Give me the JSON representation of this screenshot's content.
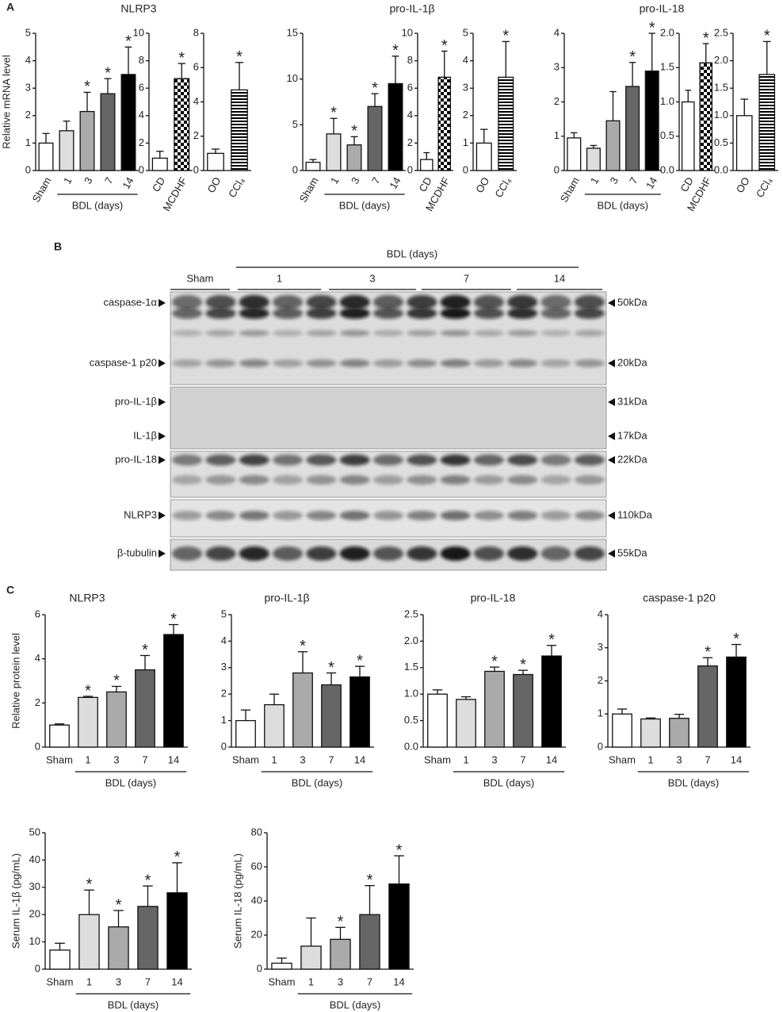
{
  "panels": [
    "A",
    "B",
    "C"
  ],
  "blot": {
    "group_label": "BDL (days)",
    "lanes": [
      "Sham",
      "1",
      "3",
      "7",
      "14"
    ],
    "rows": [
      {
        "protein": "caspase-1α",
        "size": "50kDa"
      },
      {
        "protein": "caspase-1 p20",
        "size": "20kDa"
      },
      {
        "protein": "pro-IL-1β",
        "size": "31kDa"
      },
      {
        "protein": "IL-1β",
        "size": "17kDa"
      },
      {
        "protein": "pro-IL-18",
        "size": "22kDa"
      },
      {
        "protein": "NLRP3",
        "size": "110kDa"
      },
      {
        "protein": "β-tubulin",
        "size": "55kDa"
      }
    ]
  },
  "chart_data": [
    {
      "type": "bar",
      "title": "NLRP3",
      "ylabel": "Relative mRNA level",
      "group_label": "BDL (days)",
      "categories": [
        "Sham",
        "1",
        "3",
        "7",
        "14"
      ],
      "values": [
        1.0,
        1.45,
        2.15,
        2.8,
        3.5
      ],
      "errors": [
        0.35,
        0.35,
        0.7,
        0.55,
        1.0
      ],
      "significance": [
        null,
        null,
        "*",
        "*",
        "*"
      ],
      "colors": [
        "#ffffff",
        "#dddddd",
        "#aaaaaa",
        "#666666",
        "#000000"
      ],
      "ylim": [
        0,
        5
      ],
      "yticks": [
        0,
        1,
        2,
        3,
        4,
        5
      ]
    },
    {
      "type": "bar",
      "categories": [
        "CD",
        "MCDHF"
      ],
      "values": [
        0.9,
        6.7
      ],
      "errors": [
        0.5,
        1.1
      ],
      "significance": [
        null,
        "*"
      ],
      "colors": [
        "#ffffff",
        "#ffffff"
      ],
      "patterns": [
        null,
        "checker"
      ],
      "ylim": [
        0,
        10
      ],
      "yticks": [
        0,
        2,
        4,
        6,
        8,
        10
      ]
    },
    {
      "type": "bar",
      "categories": [
        "OO",
        "CCl₄"
      ],
      "values": [
        1.0,
        4.7
      ],
      "errors": [
        0.25,
        1.6
      ],
      "significance": [
        null,
        "*"
      ],
      "colors": [
        "#ffffff",
        "#ffffff"
      ],
      "patterns": [
        null,
        "stripes"
      ],
      "ylim": [
        0,
        8
      ],
      "yticks": [
        0,
        2,
        4,
        6,
        8
      ]
    },
    {
      "type": "bar",
      "title": "pro-IL-1β",
      "group_label": "BDL (days)",
      "categories": [
        "Sham",
        "1",
        "3",
        "7",
        "14"
      ],
      "values": [
        0.9,
        4.0,
        2.8,
        7.0,
        9.5
      ],
      "errors": [
        0.3,
        1.7,
        0.9,
        1.4,
        3.0
      ],
      "significance": [
        null,
        "*",
        "*",
        "*",
        "*"
      ],
      "colors": [
        "#ffffff",
        "#dddddd",
        "#aaaaaa",
        "#666666",
        "#000000"
      ],
      "ylim": [
        0,
        15
      ],
      "yticks": [
        0,
        5,
        10,
        15
      ]
    },
    {
      "type": "bar",
      "categories": [
        "CD",
        "MCDHF"
      ],
      "values": [
        0.8,
        6.8
      ],
      "errors": [
        0.5,
        1.9
      ],
      "significance": [
        null,
        "*"
      ],
      "colors": [
        "#ffffff",
        "#ffffff"
      ],
      "patterns": [
        null,
        "checker"
      ],
      "ylim": [
        0,
        10
      ],
      "yticks": [
        0,
        2,
        4,
        6,
        8,
        10
      ]
    },
    {
      "type": "bar",
      "categories": [
        "OO",
        "CCl₄"
      ],
      "values": [
        1.0,
        3.4
      ],
      "errors": [
        0.5,
        1.3
      ],
      "significance": [
        null,
        "*"
      ],
      "colors": [
        "#ffffff",
        "#ffffff"
      ],
      "patterns": [
        null,
        "stripes"
      ],
      "ylim": [
        0,
        5
      ],
      "yticks": [
        0,
        1,
        2,
        3,
        4,
        5
      ]
    },
    {
      "type": "bar",
      "title": "pro-IL-18",
      "group_label": "BDL (days)",
      "categories": [
        "Sham",
        "1",
        "3",
        "7",
        "14"
      ],
      "values": [
        0.95,
        0.65,
        1.45,
        2.45,
        2.9
      ],
      "errors": [
        0.15,
        0.08,
        0.85,
        0.7,
        1.1
      ],
      "significance": [
        null,
        null,
        null,
        "*",
        "*"
      ],
      "colors": [
        "#ffffff",
        "#dddddd",
        "#aaaaaa",
        "#666666",
        "#000000"
      ],
      "ylim": [
        0,
        4
      ],
      "yticks": [
        0,
        1,
        2,
        3,
        4
      ]
    },
    {
      "type": "bar",
      "categories": [
        "CD",
        "MCDHF"
      ],
      "values": [
        1.0,
        1.57
      ],
      "errors": [
        0.17,
        0.28
      ],
      "significance": [
        null,
        "*"
      ],
      "colors": [
        "#ffffff",
        "#ffffff"
      ],
      "patterns": [
        null,
        "checker"
      ],
      "ylim": [
        0,
        2.0
      ],
      "yticks": [
        {
          "value": 0,
          "label": "0.0"
        },
        0.5,
        {
          "value": 1.0,
          "label": "1.0"
        },
        1.5,
        {
          "value": 2.0,
          "label": "2.0"
        }
      ]
    },
    {
      "type": "bar",
      "categories": [
        "OO",
        "CCl₄"
      ],
      "values": [
        1.0,
        1.75
      ],
      "errors": [
        0.3,
        0.6
      ],
      "significance": [
        null,
        "*"
      ],
      "colors": [
        "#ffffff",
        "#ffffff"
      ],
      "patterns": [
        null,
        "stripes"
      ],
      "ylim": [
        0,
        2.5
      ],
      "yticks": [
        {
          "value": 0,
          "label": "0.0"
        },
        0.5,
        {
          "value": 1.0,
          "label": "1.0"
        },
        1.5,
        {
          "value": 2.0,
          "label": "2.0"
        },
        2.5
      ]
    },
    {
      "type": "bar",
      "title": "NLRP3",
      "ylabel": "Relative protein level",
      "group_label": "BDL (days)",
      "categories": [
        "Sham",
        "1",
        "3",
        "7",
        "14"
      ],
      "values": [
        1.0,
        2.25,
        2.5,
        3.5,
        5.1
      ],
      "errors": [
        0.05,
        0.05,
        0.25,
        0.65,
        0.45
      ],
      "significance": [
        null,
        "*",
        "*",
        "*",
        "*"
      ],
      "colors": [
        "#ffffff",
        "#dddddd",
        "#aaaaaa",
        "#666666",
        "#000000"
      ],
      "ylim": [
        0,
        6
      ],
      "yticks": [
        0,
        2,
        4,
        6
      ]
    },
    {
      "type": "bar",
      "title": "pro-IL-1β",
      "group_label": "BDL (days)",
      "categories": [
        "Sham",
        "1",
        "3",
        "7",
        "14"
      ],
      "values": [
        1.0,
        1.6,
        2.8,
        2.35,
        2.65
      ],
      "errors": [
        0.4,
        0.4,
        0.8,
        0.45,
        0.4
      ],
      "significance": [
        null,
        null,
        "*",
        "*",
        "*"
      ],
      "colors": [
        "#ffffff",
        "#dddddd",
        "#aaaaaa",
        "#666666",
        "#000000"
      ],
      "ylim": [
        0,
        5
      ],
      "yticks": [
        0,
        1,
        2,
        3,
        4,
        5
      ]
    },
    {
      "type": "bar",
      "title": "pro-IL-18",
      "group_label": "BDL (days)",
      "categories": [
        "Sham",
        "1",
        "3",
        "7",
        "14"
      ],
      "values": [
        1.0,
        0.9,
        1.43,
        1.37,
        1.72
      ],
      "errors": [
        0.08,
        0.05,
        0.08,
        0.08,
        0.2
      ],
      "significance": [
        null,
        null,
        "*",
        "*",
        "*"
      ],
      "colors": [
        "#ffffff",
        "#dddddd",
        "#aaaaaa",
        "#666666",
        "#000000"
      ],
      "ylim": [
        0,
        2.5
      ],
      "yticks": [
        {
          "value": 0,
          "label": "0.0"
        },
        0.5,
        {
          "value": 1.0,
          "label": "1.0"
        },
        1.5,
        {
          "value": 2.0,
          "label": "2.0"
        },
        2.5
      ]
    },
    {
      "type": "bar",
      "title": "caspase-1 p20",
      "group_label": "BDL (days)",
      "categories": [
        "Sham",
        "1",
        "3",
        "7",
        "14"
      ],
      "values": [
        1.0,
        0.85,
        0.87,
        2.45,
        2.72
      ],
      "errors": [
        0.15,
        0.03,
        0.12,
        0.25,
        0.38
      ],
      "significance": [
        null,
        null,
        null,
        "*",
        "*"
      ],
      "colors": [
        "#ffffff",
        "#dddddd",
        "#aaaaaa",
        "#666666",
        "#000000"
      ],
      "ylim": [
        0,
        4
      ],
      "yticks": [
        0,
        1,
        2,
        3,
        4
      ]
    },
    {
      "type": "bar",
      "ylabel": "Serum IL-1β (pg/mL)",
      "group_label": "BDL (days)",
      "categories": [
        "Sham",
        "1",
        "3",
        "7",
        "14"
      ],
      "values": [
        7,
        20,
        15.5,
        23,
        28
      ],
      "errors": [
        2.5,
        9,
        6,
        7.5,
        11
      ],
      "significance": [
        null,
        "*",
        "*",
        "*",
        "*"
      ],
      "colors": [
        "#ffffff",
        "#dddddd",
        "#aaaaaa",
        "#666666",
        "#000000"
      ],
      "ylim": [
        0,
        50
      ],
      "yticks": [
        0,
        10,
        20,
        30,
        40,
        50
      ]
    },
    {
      "type": "bar",
      "ylabel": "Serum IL-18 (pg/mL)",
      "group_label": "BDL (days)",
      "categories": [
        "Sham",
        "1",
        "3",
        "7",
        "14"
      ],
      "values": [
        3.5,
        13.5,
        17.5,
        32,
        50
      ],
      "errors": [
        3,
        16.5,
        7,
        17,
        16.5
      ],
      "significance": [
        null,
        null,
        "*",
        "*",
        "*"
      ],
      "colors": [
        "#ffffff",
        "#dddddd",
        "#aaaaaa",
        "#666666",
        "#000000"
      ],
      "ylim": [
        0,
        80
      ],
      "yticks": [
        0,
        20,
        40,
        60,
        80
      ]
    }
  ]
}
